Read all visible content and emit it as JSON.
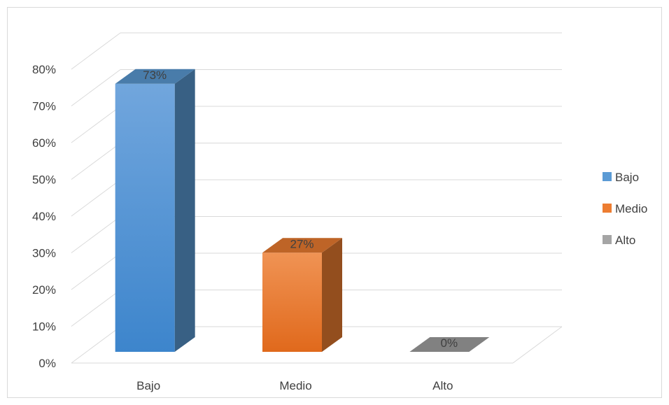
{
  "chart_data": {
    "type": "bar",
    "categories": [
      "Bajo",
      "Medio",
      "Alto"
    ],
    "values": [
      73,
      27,
      0
    ],
    "data_labels": [
      "73%",
      "27%",
      "0%"
    ],
    "ylim": [
      0,
      80
    ],
    "y_ticks": [
      0,
      10,
      20,
      30,
      40,
      50,
      60,
      70,
      80
    ],
    "y_tick_labels": [
      "0%",
      "10%",
      "20%",
      "30%",
      "40%",
      "50%",
      "60%",
      "70%",
      "80%"
    ],
    "grid": true,
    "three_d": true,
    "legend": {
      "placement": "right",
      "entries": [
        "Bajo",
        "Medio",
        "Alto"
      ]
    },
    "colors": {
      "Bajo": "#5b9bd5",
      "Medio": "#ed7d31",
      "Alto": "#a5a5a5",
      "grid": "#d9d9d9",
      "text": "#404040"
    }
  }
}
